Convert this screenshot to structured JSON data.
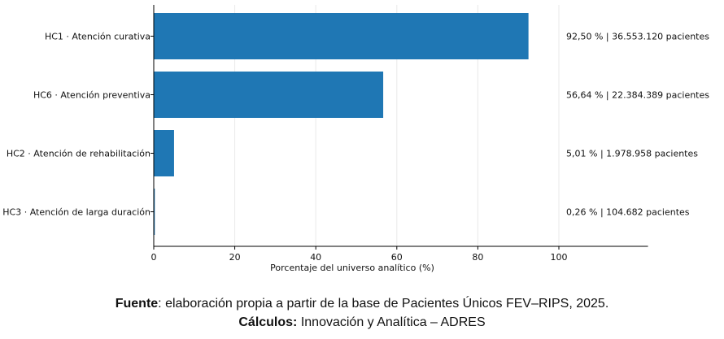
{
  "chart_data": {
    "type": "bar",
    "orientation": "horizontal",
    "categories": [
      "HC1 · Atención curativa",
      "HC6 · Atención preventiva",
      "HC2 · Atención de rehabilitación",
      "HC3 · Atención de larga duración"
    ],
    "values": [
      92.5,
      56.64,
      5.01,
      0.26
    ],
    "annotations": [
      "92,50 %  |  36.553.120 pacientes",
      "56,64 %  |  22.384.389 pacientes",
      "5,01 %  |  1.978.958 pacientes",
      "0,26 %  |  104.682 pacientes"
    ],
    "xlabel": "Porcentaje del universo analítico (%)",
    "ylabel": "",
    "xlim": [
      0,
      122
    ],
    "xticks": [
      0,
      20,
      40,
      60,
      80,
      100
    ],
    "grid": "vertical",
    "bar_color": "#1f77b4"
  },
  "caption": {
    "source_label": "Fuente",
    "source_text": ": elaboración propia a partir de la base de Pacientes Únicos FEV–RIPS, 2025.",
    "calc_label": "Cálculos:",
    "calc_text": " Innovación y Analítica – ADRES"
  }
}
